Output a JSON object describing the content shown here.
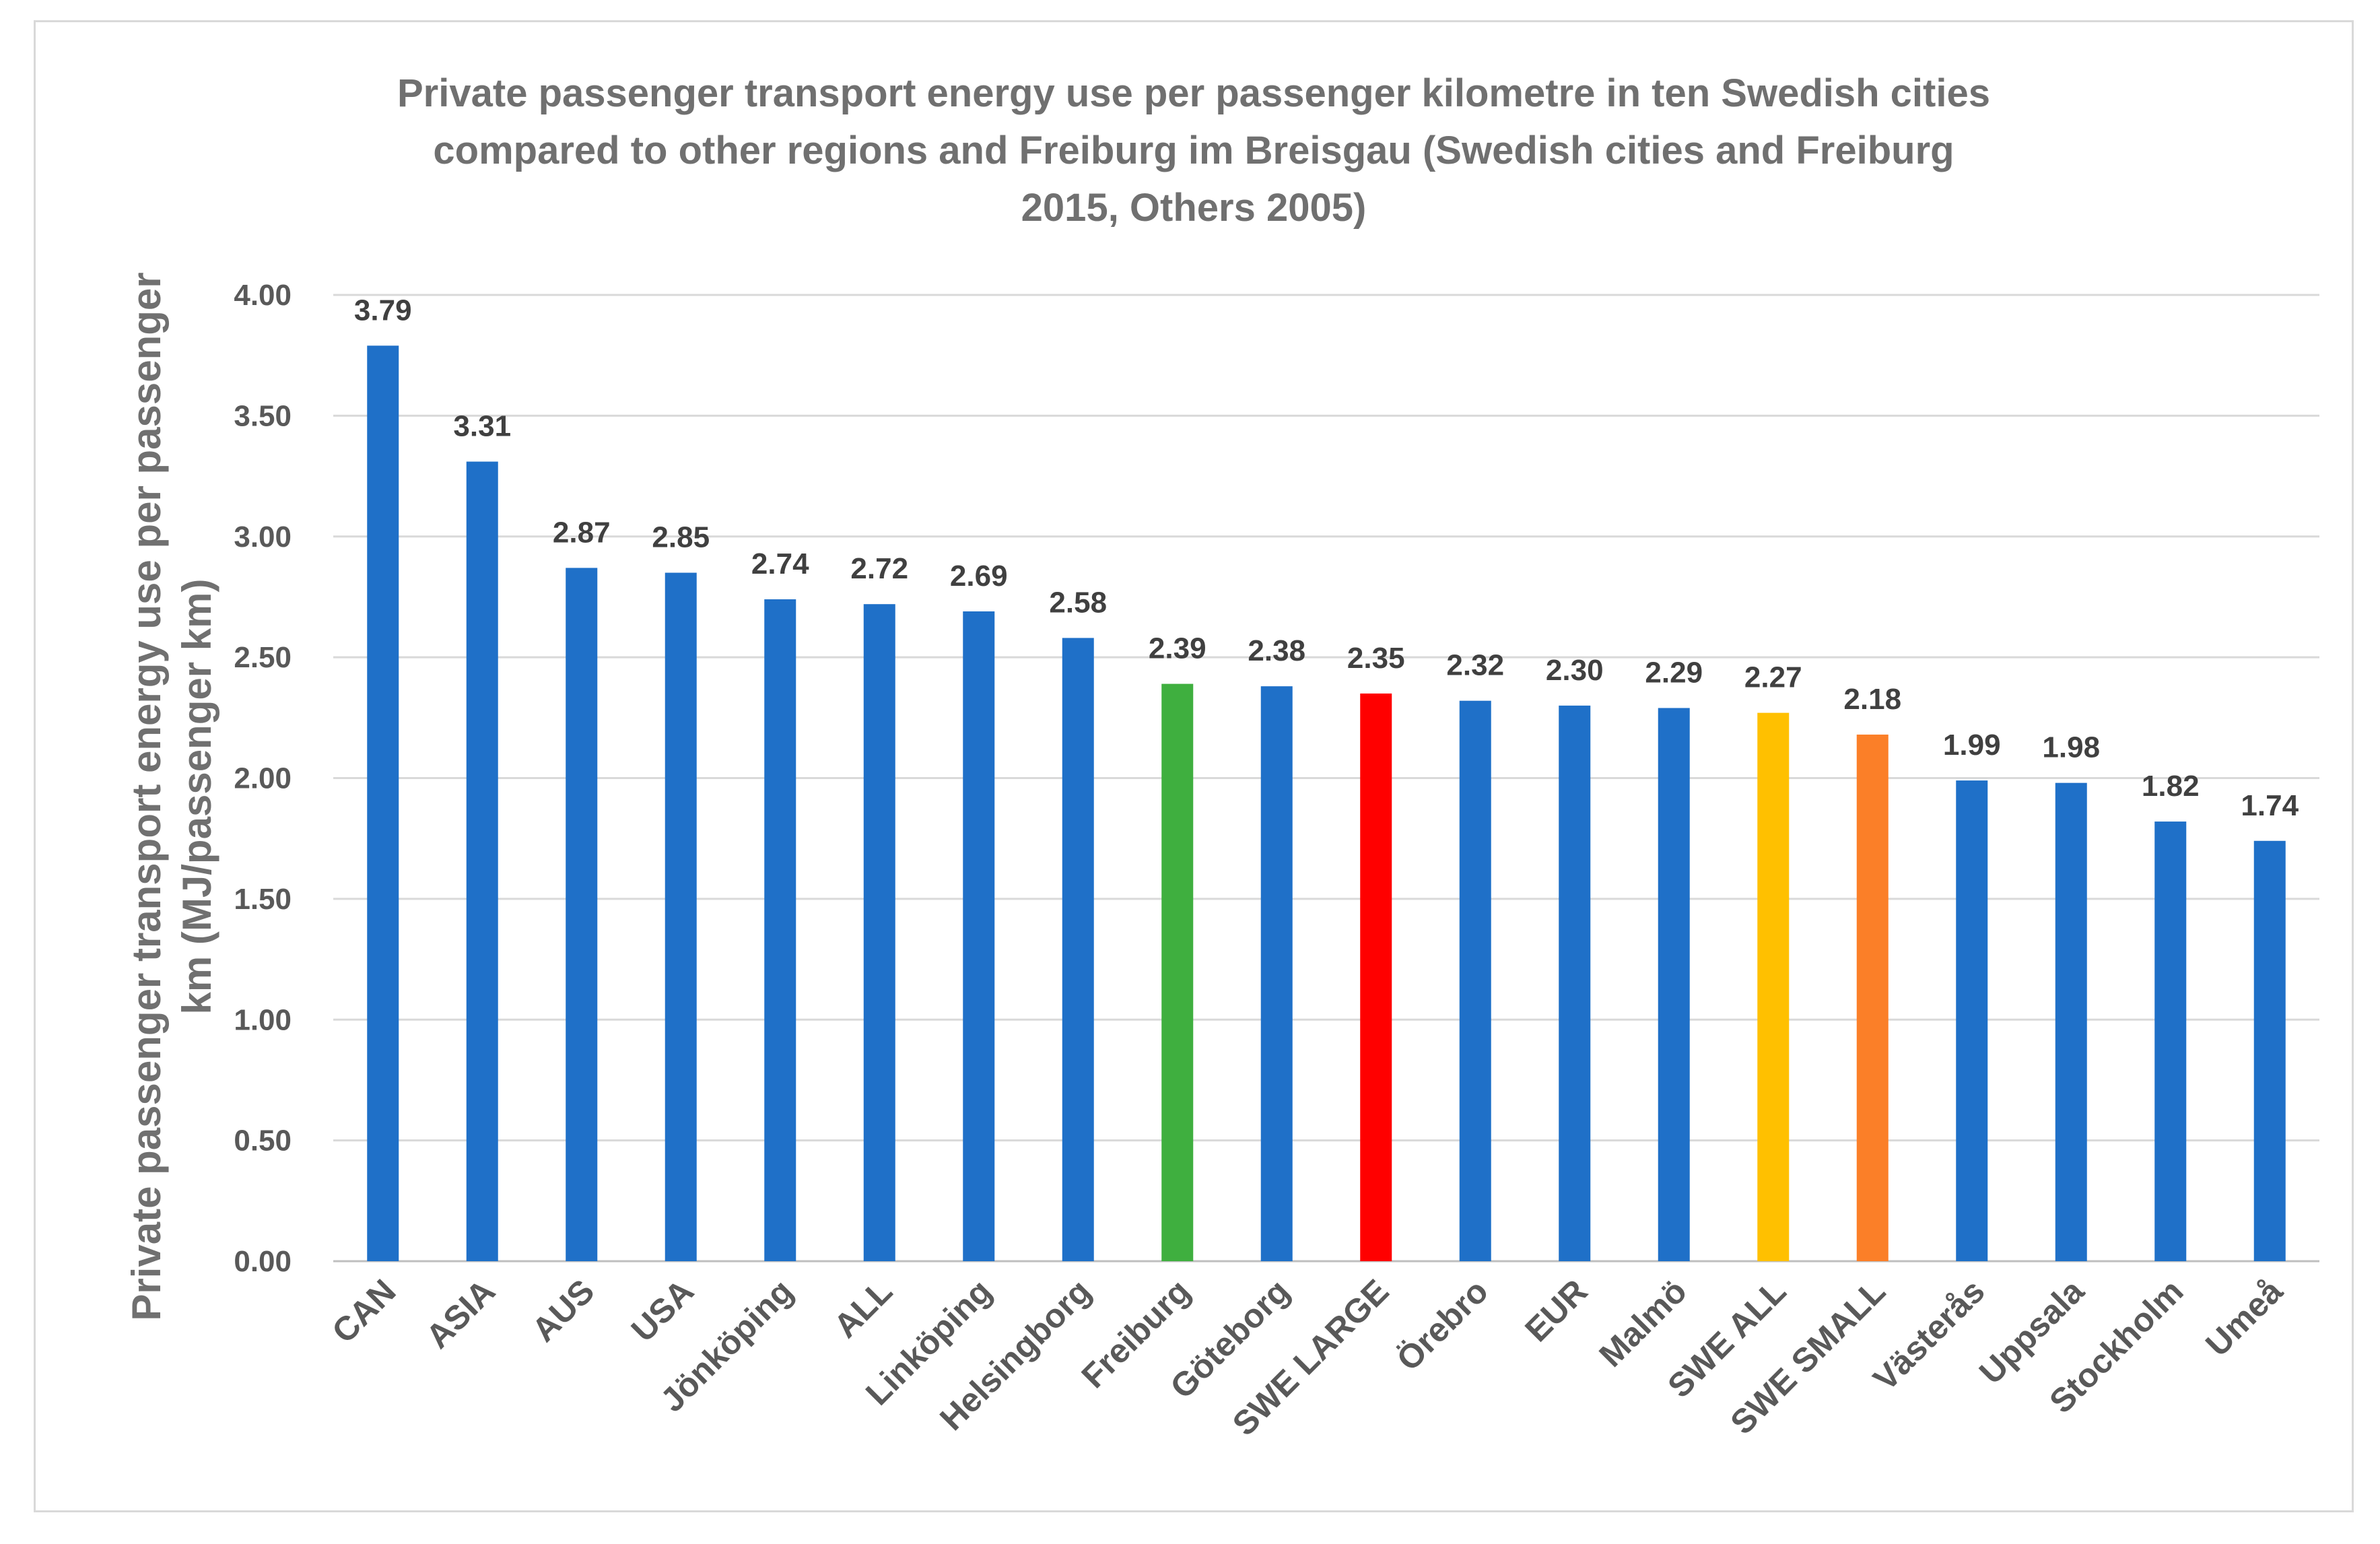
{
  "chart_data": {
    "type": "bar",
    "title_lines": [
      "Private passenger transport energy use per passenger kilometre in ten Swedish cities",
      "compared to other regions and Freiburg im Breisgau (Swedish cities and Freiburg",
      "2015, Others 2005)"
    ],
    "ylabel_lines": [
      "Private passenger transport energy use per passenger",
      "km (MJ/passenger km)"
    ],
    "xlabel": "",
    "ylim": [
      0,
      4
    ],
    "ytick_values": [
      0,
      0.5,
      1,
      1.5,
      2,
      2.5,
      3,
      3.5,
      4
    ],
    "ytick_labels": [
      "0.00",
      "0.50",
      "1.00",
      "1.50",
      "2.00",
      "2.50",
      "3.00",
      "3.50",
      "4.00"
    ],
    "grid": true,
    "legend": "none",
    "categories": [
      "CAN",
      "ASIA",
      "AUS",
      "USA",
      "Jönköping",
      "ALL",
      "Linköping",
      "Helsingborg",
      "Freiburg",
      "Göteborg",
      "SWE LARGE",
      "Örebro",
      "EUR",
      "Malmö",
      "SWE ALL",
      "SWE SMALL",
      "Västerås",
      "Uppsala",
      "Stockholm",
      "Umeå"
    ],
    "values": [
      3.79,
      3.31,
      2.87,
      2.85,
      2.74,
      2.72,
      2.69,
      2.58,
      2.39,
      2.38,
      2.35,
      2.32,
      2.3,
      2.29,
      2.27,
      2.18,
      1.99,
      1.98,
      1.82,
      1.74
    ],
    "value_labels": [
      "3.79",
      "3.31",
      "2.87",
      "2.85",
      "2.74",
      "2.72",
      "2.69",
      "2.58",
      "2.39",
      "2.38",
      "2.35",
      "2.32",
      "2.30",
      "2.29",
      "2.27",
      "2.18",
      "1.99",
      "1.98",
      "1.82",
      "1.74"
    ],
    "bar_colors": [
      "#1f70c8",
      "#1f70c8",
      "#1f70c8",
      "#1f70c8",
      "#1f70c8",
      "#1f70c8",
      "#1f70c8",
      "#1f70c8",
      "#3faf3f",
      "#1f70c8",
      "#ff0000",
      "#1f70c8",
      "#1f70c8",
      "#1f70c8",
      "#ffc000",
      "#fb7f28",
      "#1f70c8",
      "#1f70c8",
      "#1f70c8",
      "#1f70c8"
    ]
  }
}
